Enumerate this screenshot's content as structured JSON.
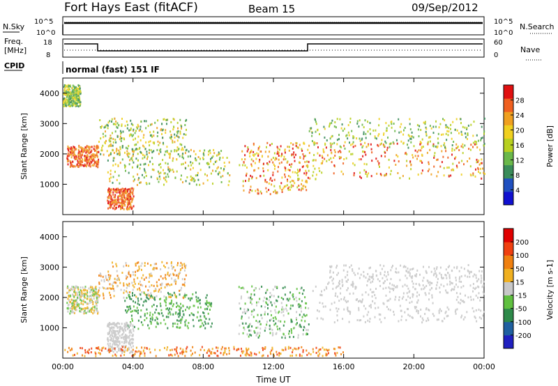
{
  "header": {
    "station": "Fort Hays East (fitACF)",
    "beam": "Beam 15",
    "date": "09/Sep/2012"
  },
  "top_panels": {
    "nsky_label": "N.Sky",
    "nsearch_label": "N.Search",
    "freq_label_line1": "Freq.",
    "freq_label_line2": "[MHz]",
    "nave_label": "Nave",
    "cpid_label": "CPID",
    "noise_ticks": [
      "10^5",
      "10^0"
    ],
    "freq_ticks": [
      "18",
      "8"
    ],
    "nave_ticks": [
      "60",
      "0"
    ],
    "cpid_text": "normal (fast) 151 IF"
  },
  "chart_data": [
    {
      "type": "heatmap",
      "name": "power",
      "xlabel": "Time UT",
      "ylabel": "Slant Range [km]",
      "xlim": [
        0,
        24
      ],
      "ylim": [
        0,
        4500
      ],
      "x_ticks": [
        "00:00",
        "04:00",
        "08:00",
        "12:00",
        "16:00",
        "20:00",
        "00:00"
      ],
      "y_ticks": [
        "1000",
        "2000",
        "3000",
        "4000"
      ],
      "colorbar_label": "Power [dB]",
      "colorbar_ticks": [
        "4",
        "8",
        "12",
        "16",
        "20",
        "24",
        "28"
      ],
      "colorbar_colors": [
        "#1010d0",
        "#2050c0",
        "#3a8c5a",
        "#6ab84a",
        "#b8d020",
        "#f0d020",
        "#f0a020",
        "#f06020",
        "#e01010"
      ]
    },
    {
      "type": "heatmap",
      "name": "velocity",
      "xlabel": "Time UT",
      "ylabel": "Slant Range [km]",
      "xlim": [
        0,
        24
      ],
      "ylim": [
        0,
        4500
      ],
      "x_ticks": [
        "00:00",
        "04:00",
        "08:00",
        "12:00",
        "16:00",
        "20:00",
        "00:00"
      ],
      "y_ticks": [
        "1000",
        "2000",
        "3000",
        "4000"
      ],
      "colorbar_label": "Velocity [m s-1]",
      "colorbar_ticks": [
        "200",
        "100",
        "50",
        "15",
        "-15",
        "-50",
        "-100",
        "-200"
      ],
      "colorbar_colors": [
        "#2020c0",
        "#2060a0",
        "#2e8a4a",
        "#60c040",
        "#c8c8c8",
        "#f0b020",
        "#f08010",
        "#f04010",
        "#e00000"
      ]
    }
  ],
  "time_axis_title": "Time UT"
}
